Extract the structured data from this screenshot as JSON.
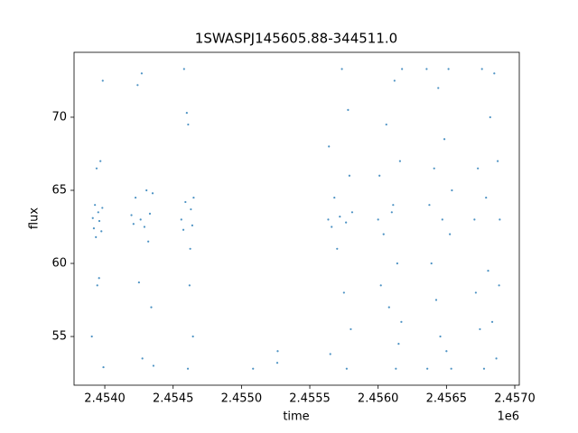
{
  "chart_data": {
    "type": "scatter",
    "title": "1SWASPJ145605.88-344511.0",
    "x_label": "time",
    "y_label": "flux",
    "x_offset_label": "1e6",
    "color": "#1f77b4",
    "x": [
      2453912,
      2453920,
      2453928,
      2453935,
      2453940,
      2453945,
      2453952,
      2453960,
      2453905,
      2453968,
      2453975,
      2453982,
      2453990,
      2453958,
      2453985,
      2454195,
      2454210,
      2454225,
      2454240,
      2454250,
      2454262,
      2454275,
      2454290,
      2454305,
      2454318,
      2454330,
      2454340,
      2454350,
      2454356,
      2454270,
      2454560,
      2454575,
      2454590,
      2454600,
      2454610,
      2454620,
      2454630,
      2454640,
      2454645,
      2454650,
      2454608,
      2454580,
      2454625,
      2455085,
      2455265,
      2455262,
      2455635,
      2455640,
      2455650,
      2455660,
      2455680,
      2455700,
      2455720,
      2455735,
      2455750,
      2455765,
      2455780,
      2455790,
      2455800,
      2455810,
      2455770,
      2456000,
      2456010,
      2456020,
      2456040,
      2456060,
      2456080,
      2456100,
      2456120,
      2456140,
      2456150,
      2456160,
      2456170,
      2456175,
      2456130,
      2456110,
      2456355,
      2456360,
      2456375,
      2456390,
      2456410,
      2456425,
      2456440,
      2456455,
      2456470,
      2456485,
      2456500,
      2456515,
      2456525,
      2456535,
      2456540,
      2456705,
      2456715,
      2456730,
      2456745,
      2456760,
      2456775,
      2456790,
      2456805,
      2456820,
      2456835,
      2456850,
      2456865,
      2456875,
      2456885,
      2456890
    ],
    "y": [
      63.1,
      62.4,
      64.0,
      61.8,
      66.5,
      58.5,
      63.5,
      62.9,
      55.0,
      67.0,
      62.2,
      63.8,
      52.9,
      59.0,
      72.5,
      63.3,
      62.7,
      64.5,
      72.2,
      58.7,
      63.0,
      53.5,
      62.5,
      65.0,
      61.5,
      63.4,
      57.0,
      64.8,
      53.0,
      73.0,
      63.0,
      62.3,
      64.2,
      70.3,
      69.5,
      58.5,
      63.7,
      62.6,
      55.0,
      64.5,
      52.8,
      73.3,
      61.0,
      52.8,
      54.0,
      53.2,
      63.0,
      68.0,
      53.8,
      62.5,
      64.5,
      61.0,
      63.2,
      73.3,
      58.0,
      62.8,
      70.5,
      66.0,
      55.5,
      63.5,
      52.8,
      63.0,
      66.0,
      58.5,
      62.0,
      69.5,
      57.0,
      63.5,
      72.5,
      60.0,
      54.5,
      67.0,
      56.0,
      73.3,
      52.8,
      64.0,
      73.3,
      52.8,
      64.0,
      60.0,
      66.5,
      57.5,
      72.0,
      55.0,
      63.0,
      68.5,
      54.0,
      73.3,
      62.0,
      52.8,
      65.0,
      63.0,
      58.0,
      66.5,
      55.5,
      73.3,
      52.8,
      64.5,
      59.5,
      70.0,
      56.0,
      73.0,
      53.5,
      67.0,
      58.5,
      63.0
    ],
    "xlim": [
      2453775,
      2457033
    ],
    "ylim": [
      51.67,
      74.44
    ],
    "xticks": [
      {
        "value": 2454000,
        "label": "2.4540"
      },
      {
        "value": 2454500,
        "label": "2.4545"
      },
      {
        "value": 2455000,
        "label": "2.4550"
      },
      {
        "value": 2455500,
        "label": "2.4555"
      },
      {
        "value": 2456000,
        "label": "2.4560"
      },
      {
        "value": 2456500,
        "label": "2.4565"
      },
      {
        "value": 2457000,
        "label": "2.4570"
      }
    ],
    "yticks": [
      55,
      60,
      65,
      70
    ]
  }
}
